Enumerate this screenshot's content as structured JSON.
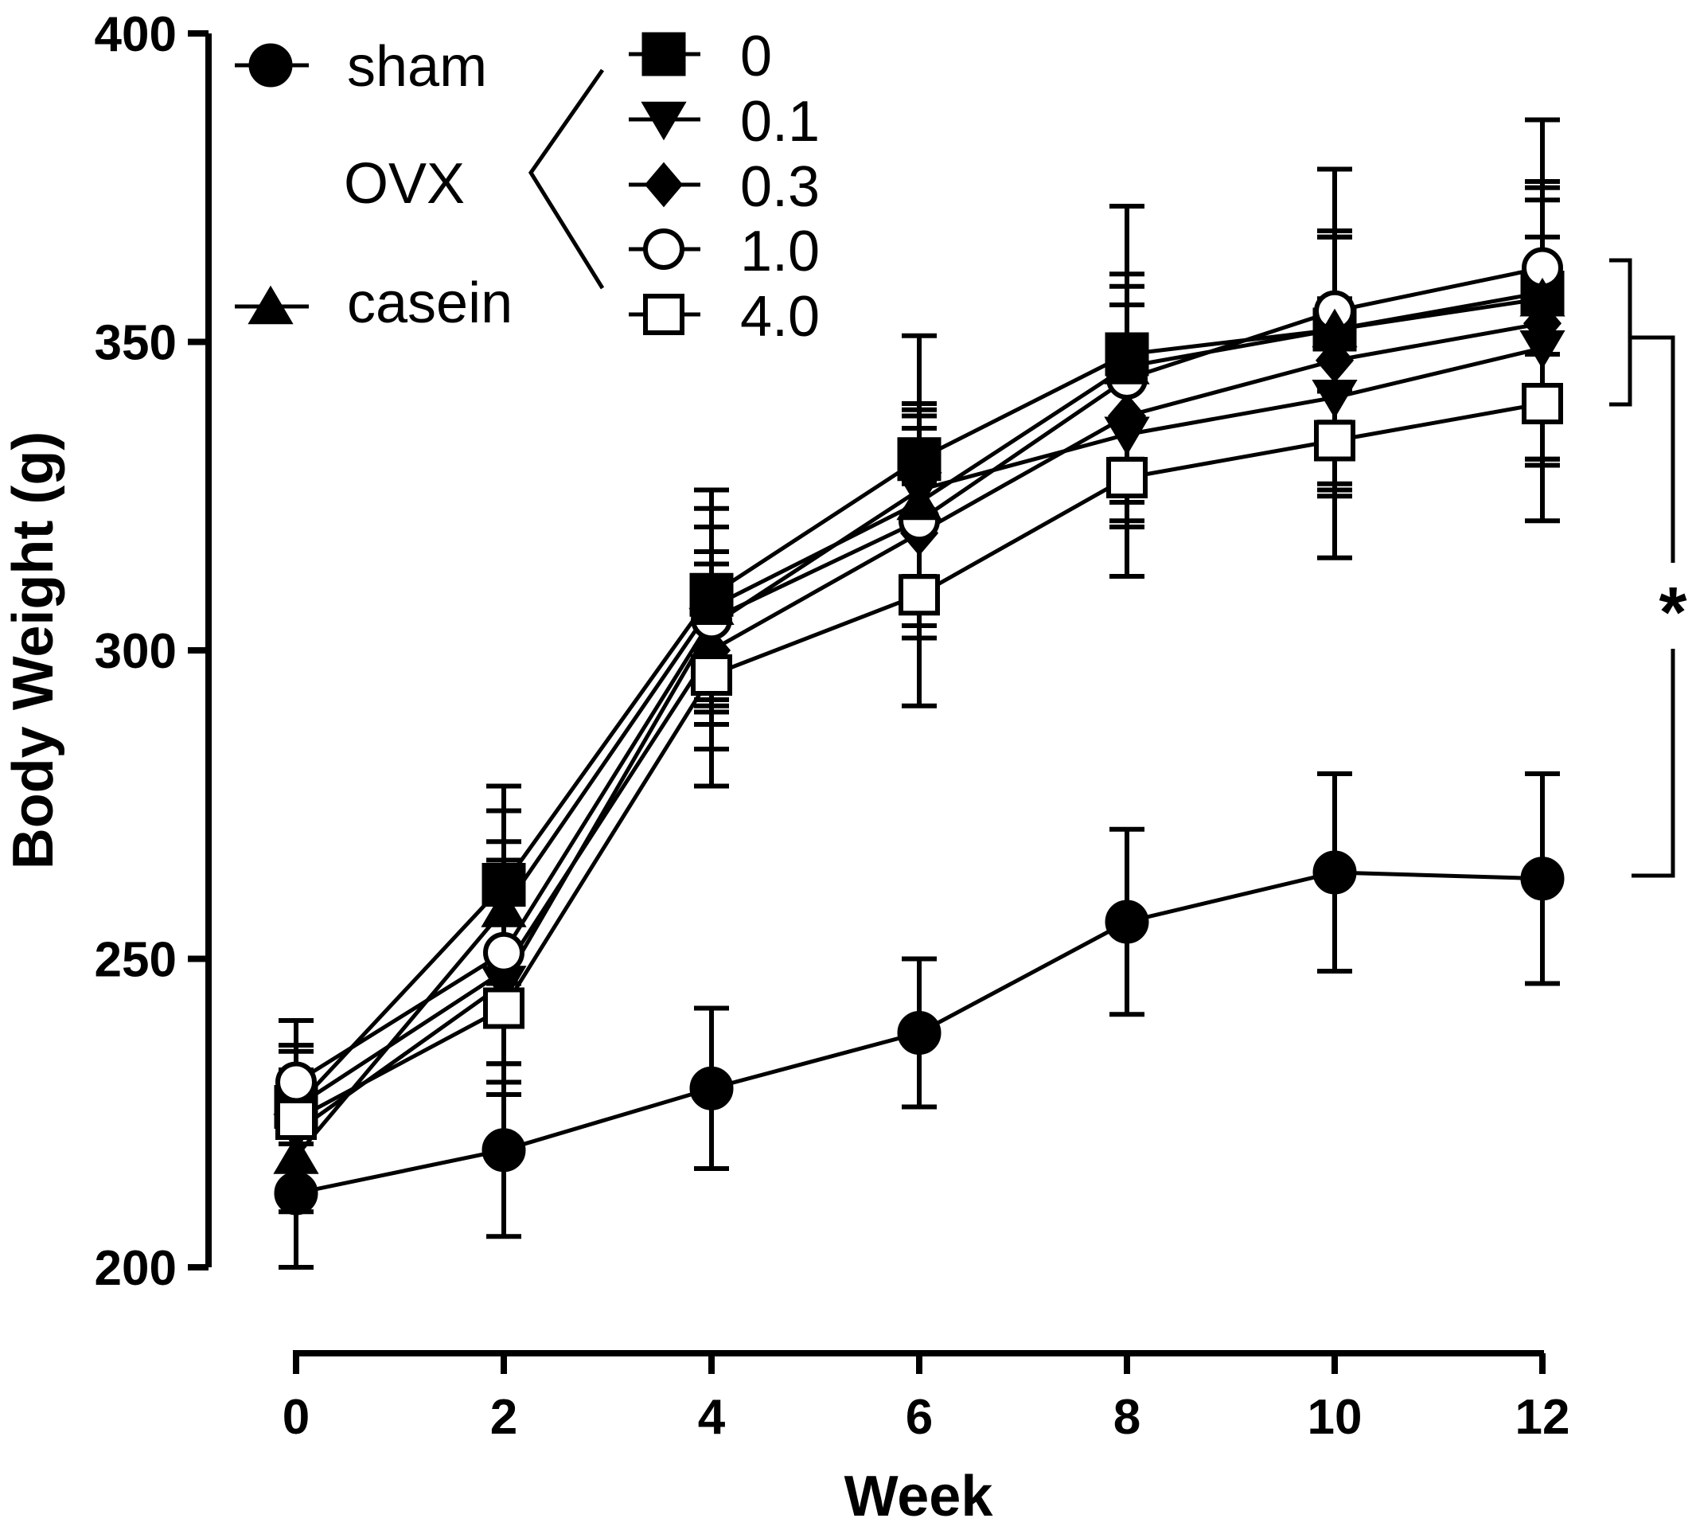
{
  "chart_data": {
    "type": "line",
    "xlabel": "Week",
    "ylabel": "Body Weight (g)",
    "xlim": [
      0,
      12
    ],
    "ylim": [
      200,
      400
    ],
    "x_ticks": [
      "0",
      "2",
      "4",
      "6",
      "8",
      "10",
      "12"
    ],
    "y_ticks": [
      "200",
      "250",
      "300",
      "350",
      "400"
    ],
    "x": [
      0,
      2,
      4,
      6,
      8,
      10,
      12
    ],
    "grid": false,
    "legend_position": "top-left",
    "legend": {
      "sham_label": "sham",
      "ovx_label": "OVX",
      "casein_label": "casein",
      "ovx_doses": [
        "0",
        "0.1",
        "0.3",
        "1.0",
        "4.0"
      ]
    },
    "significance_label": "*",
    "series": [
      {
        "name": "sham",
        "marker": "circle-filled",
        "values": [
          212,
          219,
          229,
          238,
          256,
          264,
          263
        ],
        "errors": [
          12,
          14,
          13,
          12,
          15,
          16,
          17
        ]
      },
      {
        "name": "0",
        "marker": "square-filled",
        "values": [
          226,
          262,
          309,
          331,
          348,
          352,
          358
        ],
        "errors": [
          10,
          16,
          17,
          20,
          24,
          26,
          28
        ]
      },
      {
        "name": "0.1",
        "marker": "triangle-down-filled",
        "values": [
          222,
          246,
          304,
          326,
          335,
          341,
          349
        ],
        "errors": [
          10,
          18,
          16,
          14,
          14,
          16,
          18
        ]
      },
      {
        "name": "0.3",
        "marker": "diamond-filled",
        "values": [
          226,
          248,
          300,
          319,
          338,
          347,
          353
        ],
        "errors": [
          10,
          18,
          16,
          17,
          18,
          20,
          22
        ]
      },
      {
        "name": "1.0",
        "marker": "circle-open",
        "values": [
          230,
          251,
          305,
          321,
          344,
          355,
          362
        ],
        "errors": [
          10,
          18,
          15,
          17,
          15,
          13,
          14
        ]
      },
      {
        "name": "4.0",
        "marker": "square-open",
        "values": [
          224,
          242,
          296,
          309,
          328,
          334,
          340
        ],
        "errors": [
          11,
          14,
          18,
          18,
          16,
          19,
          19
        ]
      },
      {
        "name": "casein",
        "marker": "triangle-up-filled",
        "values": [
          218,
          258,
          307,
          324,
          346,
          352,
          357
        ],
        "errors": [
          9,
          16,
          16,
          15,
          15,
          15,
          16
        ]
      }
    ]
  }
}
